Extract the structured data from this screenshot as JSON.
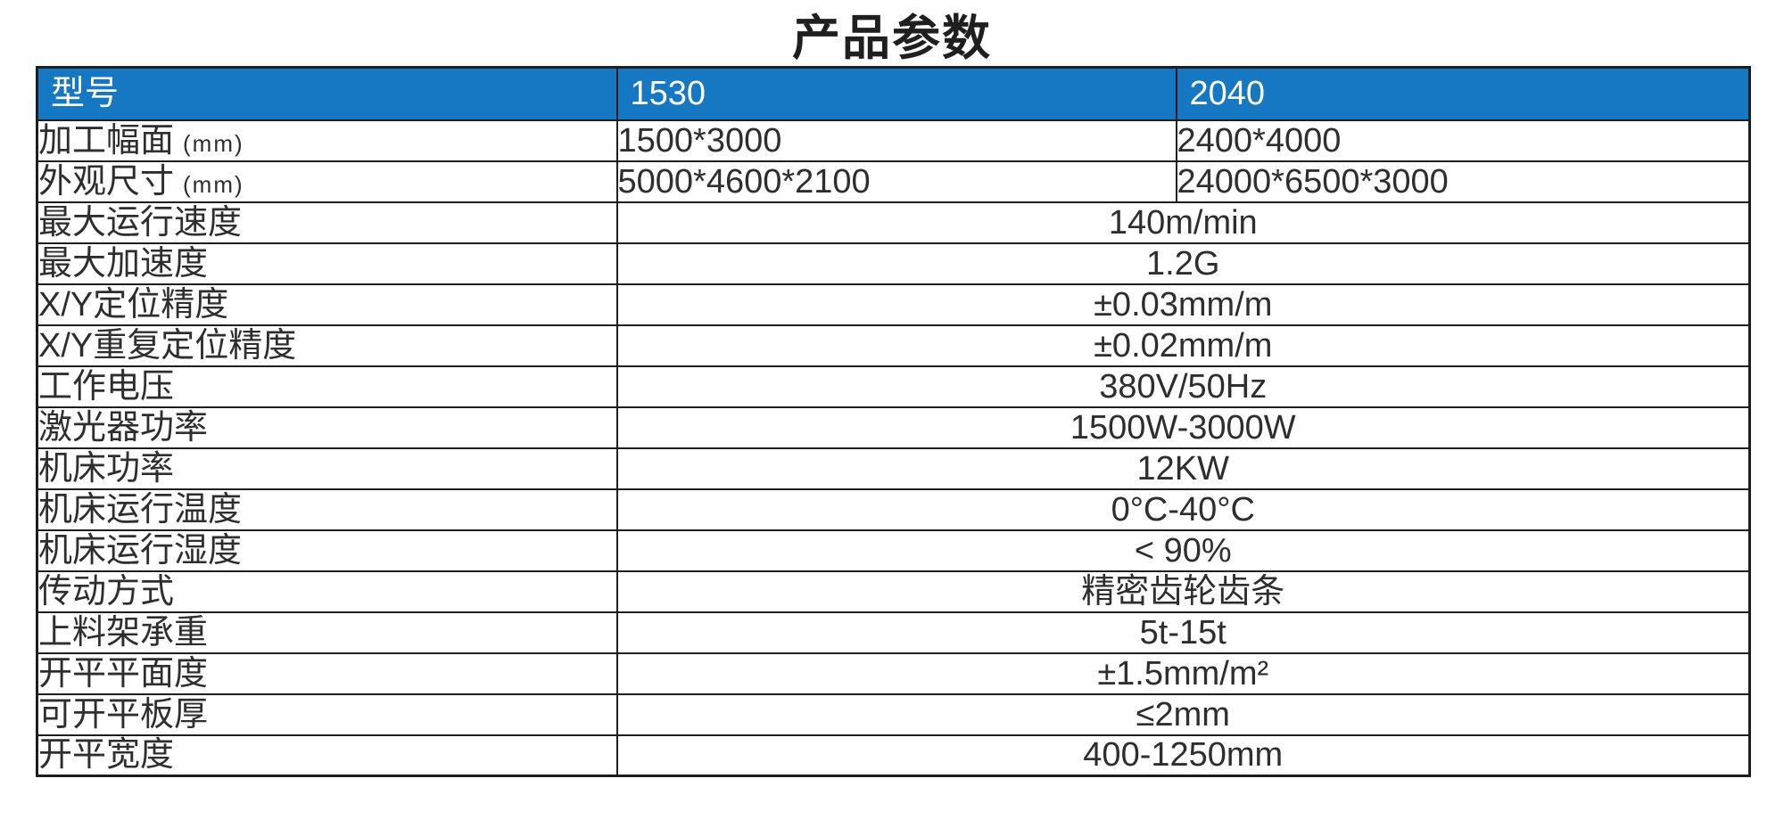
{
  "page": {
    "title": "产品参数"
  },
  "colors": {
    "header_bg": "#1677C3",
    "header_text": "#ffffff",
    "border": "#1e1e1e",
    "body_text": "#2e2e2e",
    "title_text": "#1f1f1f"
  },
  "table": {
    "columns": [
      "型号",
      "1530",
      "2040"
    ],
    "rows": [
      {
        "label": "加工幅面",
        "suffix": "(mm)",
        "values": [
          "1500*3000",
          "2400*4000"
        ]
      },
      {
        "label": "外观尺寸",
        "suffix": "(mm)",
        "values": [
          "5000*4600*2100",
          "24000*6500*3000"
        ]
      },
      {
        "label": "最大运行速度",
        "value": "140m/min"
      },
      {
        "label": "最大加速度",
        "value": "1.2G"
      },
      {
        "label": "X/Y定位精度",
        "value": "±0.03mm/m"
      },
      {
        "label": "X/Y重复定位精度",
        "value": "±0.02mm/m"
      },
      {
        "label": "工作电压",
        "value": "380V/50Hz"
      },
      {
        "label": "激光器功率",
        "value": "1500W-3000W"
      },
      {
        "label": "机床功率",
        "value": "12KW"
      },
      {
        "label": "机床运行温度",
        "value": "0°C-40°C"
      },
      {
        "label": "机床运行湿度",
        "value": "< 90%"
      },
      {
        "label": "传动方式",
        "value": "精密齿轮齿条"
      },
      {
        "label": "上料架承重",
        "value": "5t-15t"
      },
      {
        "label": "开平平面度",
        "value": "±1.5mm/m²"
      },
      {
        "label": "可开平板厚",
        "value": "≤2mm"
      },
      {
        "label": "开平宽度",
        "value": "400-1250mm"
      }
    ]
  }
}
